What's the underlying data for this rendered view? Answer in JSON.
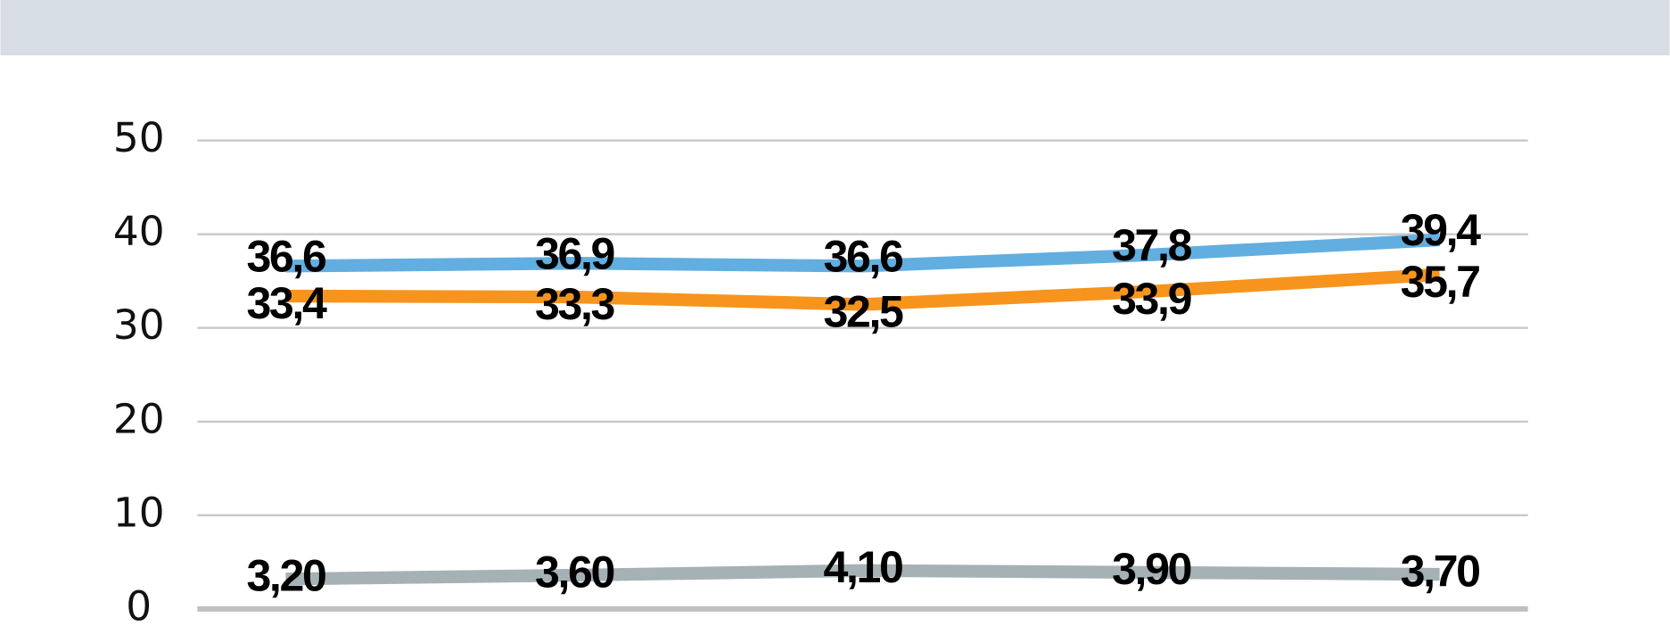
{
  "chart_data": {
    "type": "line",
    "categories": [
      null,
      null,
      null,
      null,
      null
    ],
    "series": [
      {
        "color": "#62aee0",
        "values": [
          36.6,
          36.9,
          36.6,
          37.8,
          39.4
        ],
        "value_labels": [
          "36,6",
          "36,9",
          "36,6",
          "37,8",
          "39,4"
        ]
      },
      {
        "color": "#f7941d",
        "values": [
          33.4,
          33.3,
          32.5,
          33.9,
          35.7
        ],
        "value_labels": [
          "33,4",
          "33,3",
          "32,5",
          "33,9",
          "35,7"
        ]
      },
      {
        "color": "#a6b1b5",
        "values": [
          3.2,
          3.6,
          4.1,
          3.9,
          3.7
        ],
        "value_labels": [
          "3,20",
          "3,60",
          "4,10",
          "3,90",
          "3,70"
        ]
      }
    ],
    "ylim": [
      0,
      50
    ],
    "yticks": [
      0,
      10,
      20,
      30,
      40,
      50
    ],
    "grid": true
  }
}
